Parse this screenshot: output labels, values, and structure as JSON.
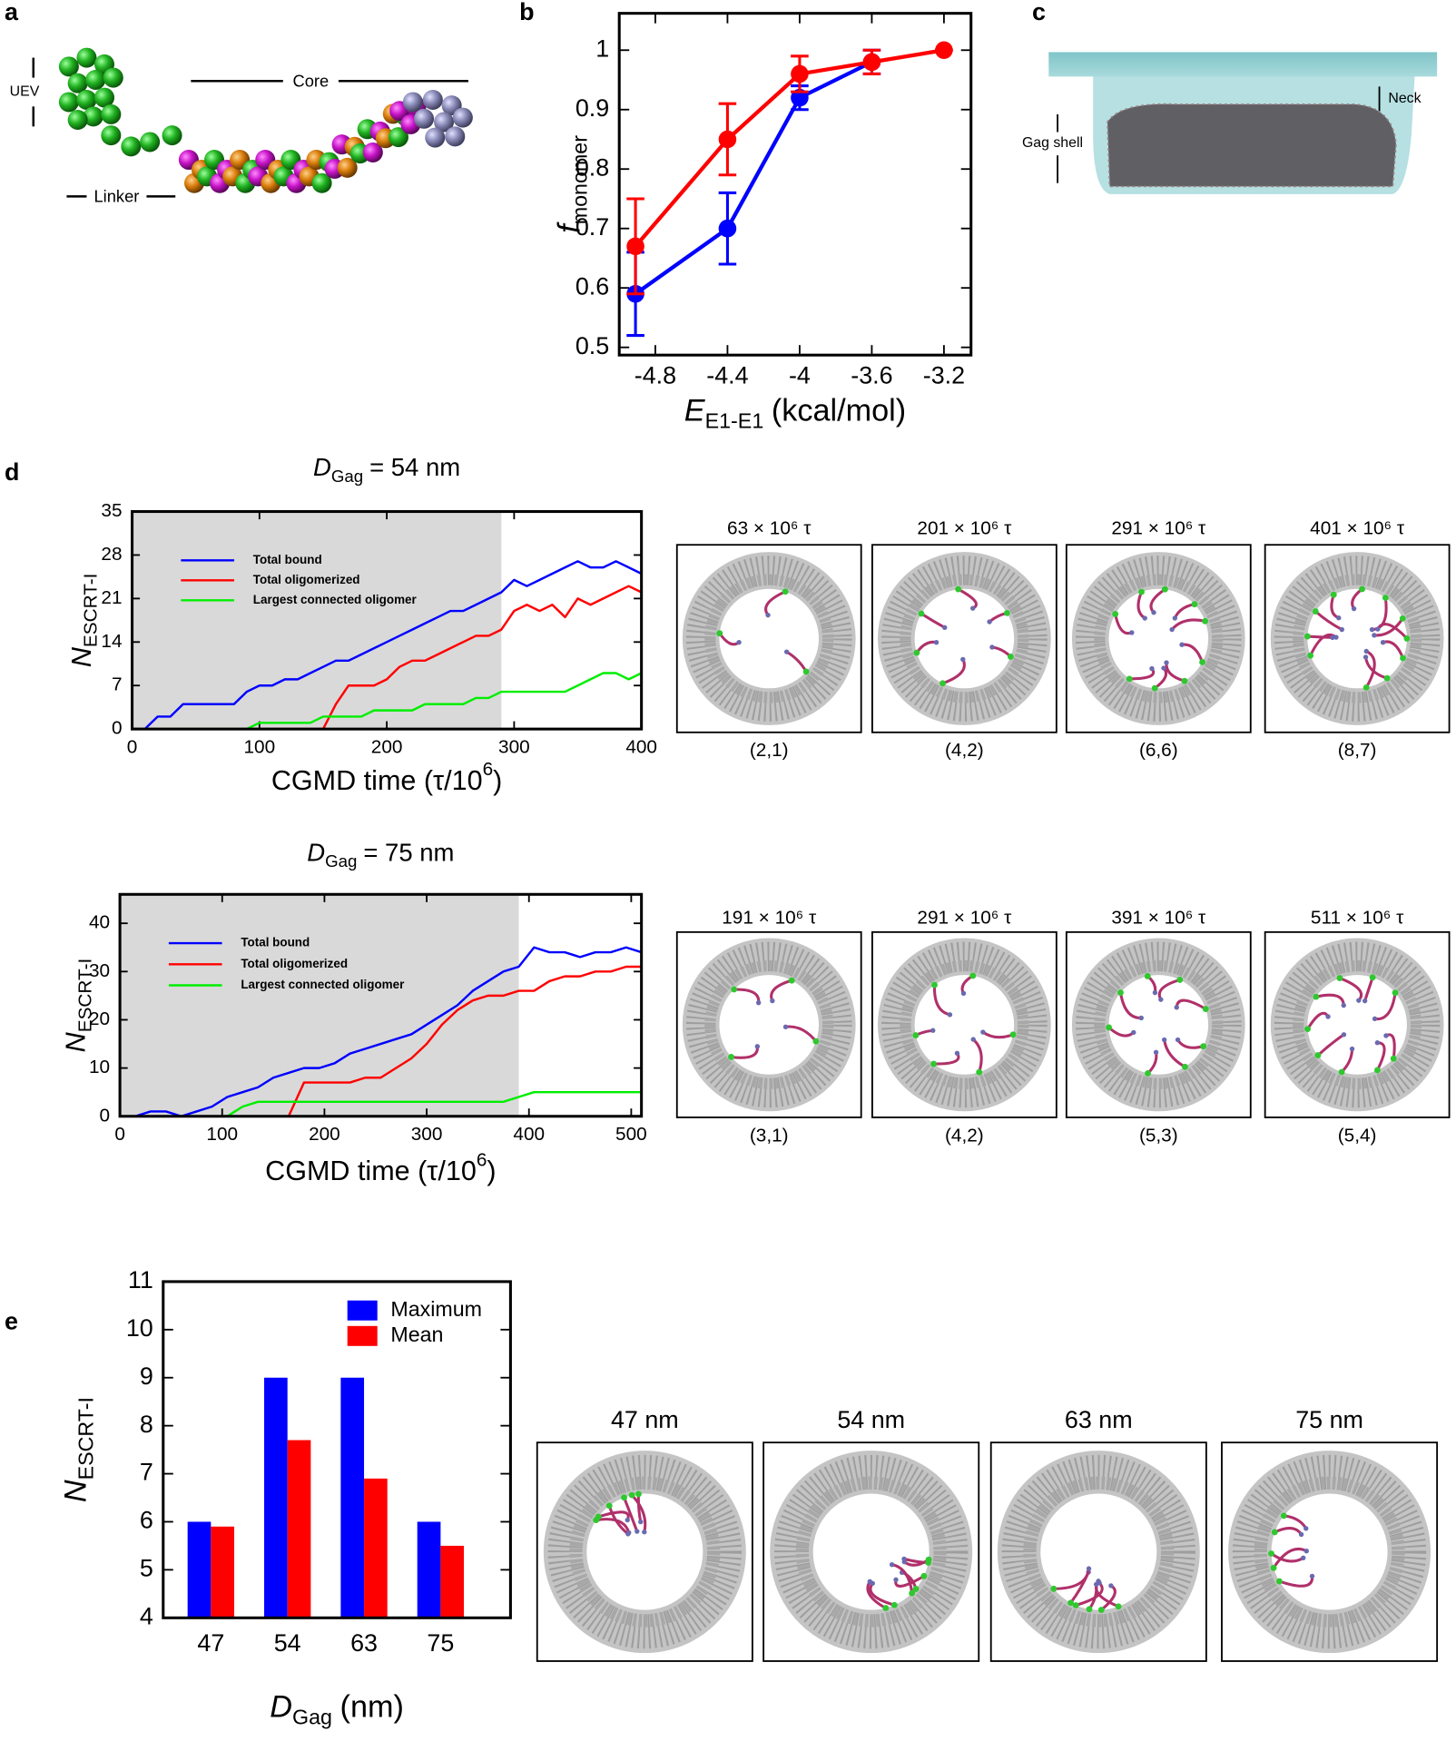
{
  "panel_labels": [
    "a",
    "b",
    "c",
    "d",
    "e"
  ],
  "panel_a": {
    "uev": "UEV",
    "core": "Core",
    "linker": "Linker"
  },
  "panel_c": {
    "neck": "Neck",
    "gag_shell": "Gag shell"
  },
  "snapshots": [
    {
      "times": [
        "63 × 10⁶ τ",
        "201 × 10⁶ τ",
        "291 × 10⁶ τ",
        "401 × 10⁶ τ"
      ],
      "counts": [
        "(2,1)",
        "(4,2)",
        "(6,6)",
        "(8,7)"
      ]
    },
    {
      "times": [
        "191 × 10⁶ τ",
        "291 × 10⁶ τ",
        "391 × 10⁶ τ",
        "511 × 10⁶ τ"
      ],
      "counts": [
        "(3,1)",
        "(4,2)",
        "(5,3)",
        "(5,4)"
      ]
    },
    {
      "labels": [
        "47 nm",
        "54 nm",
        "63 nm",
        "75 nm"
      ]
    }
  ],
  "chart_data": [
    {
      "type": "line",
      "markers": true,
      "xlabel": {
        "text": "E",
        "sub": "E1-E1",
        "end": "(kcal/mol)"
      },
      "ylabel": {
        "text": "f",
        "sub": "monomer"
      },
      "x": [
        -4.91,
        -4.4,
        -4,
        -3.6,
        -3.2
      ],
      "series": [
        {
          "color": "#0000ff",
          "values": [
            0.59,
            0.7,
            0.92,
            0.98,
            null
          ],
          "errors": [
            0.07,
            0.06,
            0.02,
            0.02,
            null
          ]
        },
        {
          "color": "#ff0000",
          "values": [
            0.67,
            0.85,
            0.96,
            0.98,
            1.0
          ],
          "errors": [
            0.08,
            0.06,
            0.03,
            0.02,
            0
          ]
        }
      ],
      "xlim": [
        -5.0,
        -3.05
      ],
      "ylim": [
        0.487,
        1.062
      ],
      "xticks": [
        -4.8,
        -4.4,
        -4,
        -3.6,
        -3.2
      ],
      "yticks": [
        0.5,
        0.6,
        0.7,
        0.8,
        0.9,
        1
      ]
    },
    {
      "type": "line",
      "legend": "upper left",
      "title": {
        "text": "D",
        "sub": "Gag",
        "end": "= 54 nm"
      },
      "xlabel": {
        "text": "CGMD time (τ/10",
        "sup": "6",
        "end": ")"
      },
      "ylabel": {
        "text": "N",
        "sub": "ESCRT-I"
      },
      "shaded_until": 290,
      "x": [
        0,
        10,
        20,
        30,
        40,
        50,
        60,
        70,
        80,
        90,
        100,
        110,
        120,
        130,
        140,
        150,
        160,
        170,
        180,
        190,
        200,
        210,
        220,
        230,
        240,
        250,
        260,
        270,
        280,
        290,
        300,
        310,
        320,
        330,
        340,
        350,
        360,
        370,
        380,
        390,
        400
      ],
      "series": [
        {
          "name": "Total bound",
          "color": "#0000ff",
          "values": [
            0,
            0,
            2,
            2,
            4,
            4,
            4,
            4,
            4,
            6,
            7,
            7,
            8,
            8,
            9,
            10,
            11,
            11,
            12,
            13,
            14,
            15,
            16,
            17,
            18,
            19,
            19,
            20,
            21,
            22,
            24,
            23,
            24,
            25,
            26,
            27,
            26,
            26,
            27,
            26,
            25
          ]
        },
        {
          "name": "Total oligomerized",
          "color": "#ff0000",
          "values": [
            0,
            0,
            0,
            0,
            0,
            0,
            0,
            0,
            0,
            0,
            0,
            0,
            0,
            0,
            0,
            0,
            4,
            7,
            7,
            7,
            8,
            10,
            11,
            11,
            12,
            13,
            14,
            15,
            15,
            16,
            19,
            20,
            19,
            20,
            18,
            21,
            20,
            21,
            22,
            23,
            22
          ]
        },
        {
          "name": "Largest connected oligomer",
          "color": "#00ee00",
          "values": [
            0,
            0,
            0,
            0,
            0,
            0,
            0,
            0,
            0,
            0,
            1,
            1,
            1,
            1,
            1,
            2,
            2,
            2,
            2,
            3,
            3,
            3,
            3,
            4,
            4,
            4,
            4,
            5,
            5,
            6,
            6,
            6,
            6,
            6,
            6,
            7,
            8,
            9,
            9,
            8,
            9
          ]
        }
      ],
      "xlim": [
        0,
        400
      ],
      "ylim": [
        0,
        35
      ],
      "xticks": [
        0,
        100,
        200,
        300,
        400
      ],
      "yticks": [
        0,
        7,
        14,
        21,
        28,
        35
      ]
    },
    {
      "type": "line",
      "legend": "upper left",
      "title": {
        "text": "D",
        "sub": "Gag",
        "end": "= 75 nm"
      },
      "xlabel": {
        "text": "CGMD time (τ/10",
        "sup": "6",
        "end": ")"
      },
      "ylabel": {
        "text": "N",
        "sub": "ESCRT-I"
      },
      "shaded_until": 390,
      "x": [
        0,
        15,
        30,
        45,
        60,
        75,
        90,
        105,
        120,
        135,
        150,
        165,
        180,
        195,
        210,
        225,
        240,
        255,
        270,
        285,
        300,
        315,
        330,
        345,
        360,
        375,
        390,
        405,
        420,
        435,
        450,
        465,
        480,
        495,
        510
      ],
      "series": [
        {
          "name": "Total bound",
          "color": "#0000ff",
          "values": [
            0,
            0,
            1,
            1,
            0,
            1,
            2,
            4,
            5,
            6,
            8,
            9,
            10,
            10,
            11,
            13,
            14,
            15,
            16,
            17,
            19,
            21,
            23,
            26,
            28,
            30,
            31,
            35,
            34,
            34,
            33,
            34,
            34,
            35,
            34
          ]
        },
        {
          "name": "Total oligomerized",
          "color": "#ff0000",
          "values": [
            0,
            0,
            0,
            0,
            0,
            0,
            0,
            0,
            0,
            0,
            0,
            0,
            7,
            7,
            7,
            7,
            8,
            8,
            10,
            12,
            15,
            19,
            22,
            24,
            25,
            25,
            26,
            26,
            28,
            29,
            29,
            30,
            30,
            31,
            31
          ]
        },
        {
          "name": "Largest connected oligomer",
          "color": "#00ee00",
          "values": [
            0,
            0,
            0,
            0,
            0,
            0,
            0,
            0,
            2,
            3,
            3,
            3,
            3,
            3,
            3,
            3,
            3,
            3,
            3,
            3,
            3,
            3,
            3,
            3,
            3,
            3,
            4,
            5,
            5,
            5,
            5,
            5,
            5,
            5,
            5
          ]
        }
      ],
      "xlim": [
        0,
        510
      ],
      "ylim": [
        0,
        46
      ],
      "xticks": [
        0,
        100,
        200,
        300,
        400,
        500
      ],
      "yticks": [
        0,
        10,
        20,
        30,
        40
      ]
    },
    {
      "type": "bar",
      "legend": "upper right",
      "xlabel": {
        "text": "D",
        "sub": "Gag",
        "end": "(nm)"
      },
      "ylabel": {
        "text": "N",
        "sub": "ESCRT-I"
      },
      "categories": [
        "47",
        "54",
        "63",
        "75"
      ],
      "series": [
        {
          "name": "Maximum",
          "color": "#0000ff",
          "values": [
            6,
            9,
            9,
            6
          ]
        },
        {
          "name": "Mean",
          "color": "#ff0000",
          "values": [
            5.9,
            7.7,
            6.9,
            5.5
          ]
        }
      ],
      "ylim": [
        4,
        11
      ],
      "yticks": [
        4,
        5,
        6,
        7,
        8,
        9,
        10,
        11
      ]
    }
  ]
}
